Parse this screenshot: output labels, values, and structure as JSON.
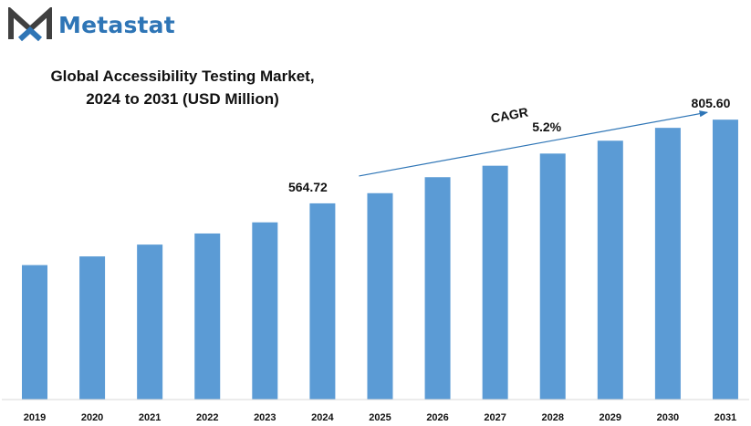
{
  "brand": {
    "name": "Metastat",
    "logo_icon": "metastat-m-icon",
    "color": "#2e75b6"
  },
  "chart_data": {
    "type": "bar",
    "title_line1": "Global Accessibility Testing Market,",
    "title_line2": "2024 to 2031 (USD Million)",
    "categories": [
      "2019",
      "2020",
      "2021",
      "2022",
      "2023",
      "2024",
      "2025",
      "2026",
      "2027",
      "2028",
      "2029",
      "2030",
      "2031"
    ],
    "values": [
      387,
      412,
      446,
      478,
      510,
      564.72,
      594,
      640,
      673,
      708,
      745,
      782,
      805.6
    ],
    "data_labels": [
      {
        "category": "2024",
        "text": "564.72"
      },
      {
        "category": "2031",
        "text": "805.60"
      }
    ],
    "annotation": {
      "label": "CAGR",
      "value": "5.2%",
      "from": "2024",
      "to": "2031"
    },
    "bar_color": "#5b9bd5",
    "ylim": [
      0,
      1150
    ],
    "grid": false,
    "legend": "none"
  }
}
